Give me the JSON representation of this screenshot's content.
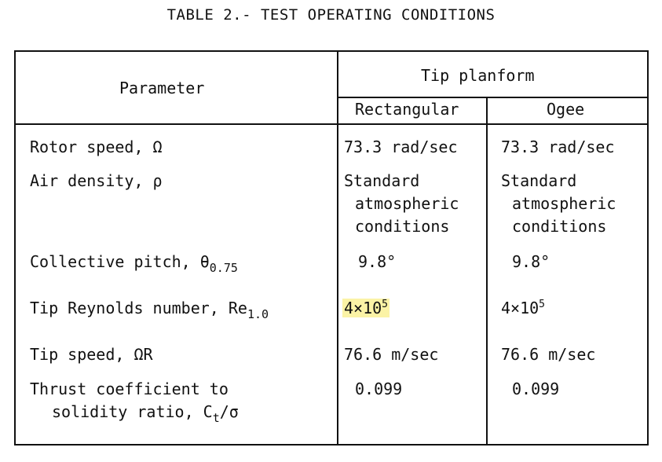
{
  "title": "TABLE 2.- TEST OPERATING CONDITIONS",
  "header": {
    "parameter": "Parameter",
    "group": "Tip planform",
    "columns": [
      "Rectangular",
      "Ogee"
    ]
  },
  "rows": [
    {
      "param": "Rotor speed, Ω",
      "rect": "73.3 rad/sec",
      "ogee": "73.3 rad/sec"
    },
    {
      "param": "Air density, ρ",
      "rect_lines": [
        "Standard",
        "atmospheric",
        "conditions"
      ],
      "ogee_lines": [
        "Standard",
        "atmospheric",
        "conditions"
      ]
    },
    {
      "param": "Collective pitch, θ",
      "param_sub": "0.75",
      "rect": "9.8°",
      "ogee": "9.8°"
    },
    {
      "param": "Tip Reynolds number, Re",
      "param_sub": "1.0",
      "rect": "4×10",
      "rect_sup": "5",
      "ogee": "4×10",
      "ogee_sup": "5"
    },
    {
      "param": "Tip speed, ΩR",
      "rect": "76.6 m/sec",
      "ogee": "76.6 m/sec"
    },
    {
      "param_lines": [
        "Thrust coefficient to",
        "solidity ratio, C"
      ],
      "param_sub": "t",
      "param_tail": "/σ",
      "rect": "0.099",
      "ogee": "0.099"
    }
  ]
}
